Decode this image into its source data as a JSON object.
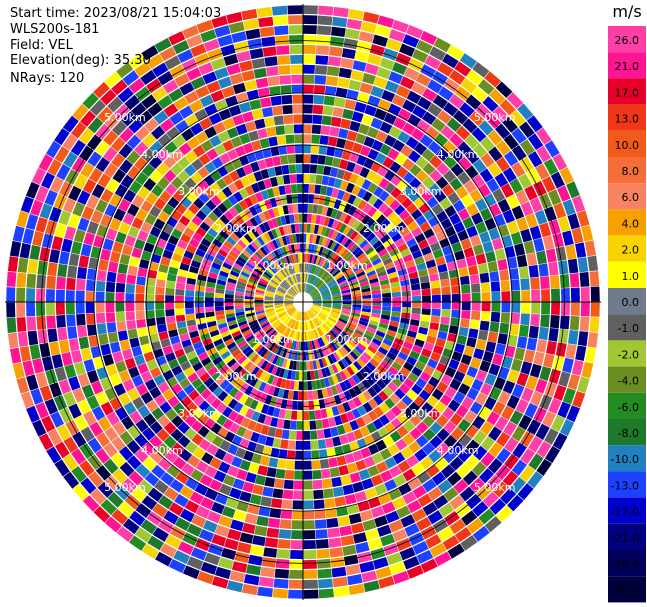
{
  "header": {
    "start_time": "Start time: 2023/08/21 15:04:03",
    "instrument": "WLS200s-181",
    "field": "Field: VEL",
    "elevation": "Elevation(deg): 35.30",
    "nrays": "NRays: 120"
  },
  "chart_data": {
    "type": "ppi",
    "field": "VEL",
    "units": "m/s",
    "n_rays": 120,
    "range_ring_labels": [
      "1.00km",
      "2.00km",
      "3.00km",
      "4.00km",
      "5.00km"
    ],
    "range_rings_km": [
      1,
      2,
      3,
      4,
      5
    ],
    "max_range_km": 5.7,
    "colorbar": {
      "label": "m/s",
      "ticks": [
        "26.0",
        "21.0",
        "17.0",
        "13.0",
        "10.0",
        "8.0",
        "6.0",
        "4.0",
        "2.0",
        "1.0",
        "0.0",
        "-1.0",
        "-2.0",
        "-4.0",
        "-6.0",
        "-8.0",
        "-10.0",
        "-13.0",
        "-17.0",
        "-21.0",
        "-26.0",
        "-30.0"
      ],
      "colors": [
        "#ff3fa8",
        "#ff1493",
        "#e8002a",
        "#f03818",
        "#f25a1a",
        "#f46e38",
        "#f88262",
        "#f7a000",
        "#f7d400",
        "#ffff00",
        "#6e7b8b",
        "#606060",
        "#a0c832",
        "#6b8e23",
        "#228b22",
        "#1e7a2a",
        "#2080c0",
        "#1e40ff",
        "#0000cd",
        "#000080",
        "#00005a",
        "#000040"
      ]
    }
  }
}
